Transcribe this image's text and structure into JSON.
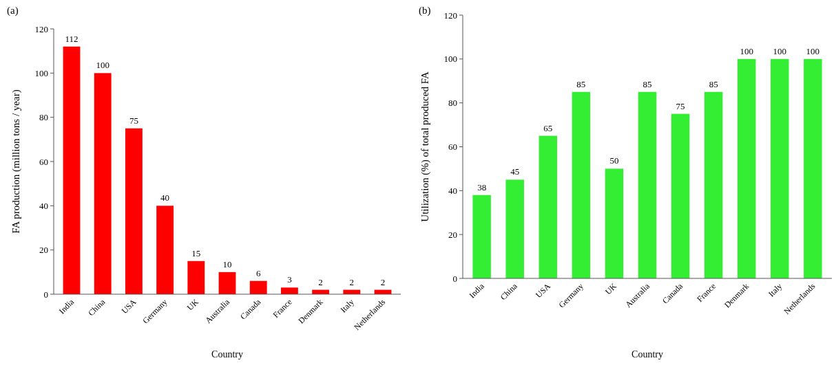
{
  "chart_data": [
    {
      "type": "bar",
      "title": "(a)",
      "xlabel": "Country",
      "ylabel": "FA production (million tons / year)",
      "categories": [
        "India",
        "China",
        "USA",
        "Germany",
        "UK",
        "Australia",
        "Canada",
        "France",
        "Denmark",
        "Italy",
        "Netherlands"
      ],
      "values": [
        112,
        100,
        75,
        40,
        15,
        10,
        6,
        3,
        2,
        2,
        2
      ],
      "color": "#ff0000",
      "ylim": [
        0,
        120
      ],
      "yticks": [
        0,
        20,
        40,
        60,
        80,
        100,
        120
      ],
      "data_labels": true,
      "grid": false
    },
    {
      "type": "bar",
      "title": "(b)",
      "xlabel": "Country",
      "ylabel": "Utilization (%) of total  produced FA",
      "categories": [
        "India",
        "China",
        "USA",
        "Germany",
        "UK",
        "Australia",
        "Canada",
        "France",
        "Denmark",
        "Italy",
        "Netherlands"
      ],
      "values": [
        38,
        45,
        65,
        85,
        50,
        85,
        75,
        85,
        100,
        100,
        100
      ],
      "color": "#33ee33",
      "ylim": [
        0,
        120
      ],
      "yticks": [
        0,
        20,
        40,
        60,
        80,
        100,
        120
      ],
      "data_labels": true,
      "grid": false
    }
  ]
}
